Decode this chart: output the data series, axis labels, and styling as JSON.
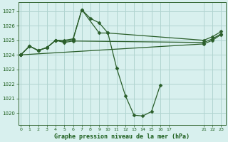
{
  "bg_color": "#d8f0ee",
  "grid_color": "#b0d4d0",
  "line_color": "#2a5e2a",
  "marker_color": "#2a5e2a",
  "title": "Graphe pression niveau de la mer (hPa)",
  "title_color": "#1a5c1a",
  "ylim": [
    1019.2,
    1027.6
  ],
  "yticks": [
    1020,
    1021,
    1022,
    1023,
    1024,
    1025,
    1026,
    1027
  ],
  "xlim": [
    -0.3,
    23.5
  ],
  "xticks": [
    0,
    1,
    2,
    3,
    4,
    5,
    6,
    7,
    8,
    9,
    10,
    11,
    12,
    13,
    14,
    15,
    16,
    17,
    21,
    22,
    23
  ],
  "line1_x": [
    0,
    1,
    2,
    3,
    4,
    5,
    6,
    7,
    8,
    9,
    10,
    11,
    12,
    13,
    14,
    15,
    16
  ],
  "line1_y": [
    1024.0,
    1024.6,
    1024.3,
    1024.5,
    1025.0,
    1025.0,
    1025.1,
    1027.1,
    1026.5,
    1026.2,
    1025.5,
    1023.1,
    1021.2,
    1019.85,
    1019.8,
    1020.1,
    1021.9
  ],
  "line2_x": [
    0,
    1,
    2,
    3,
    4,
    5,
    6,
    7,
    9,
    10,
    21,
    22,
    23
  ],
  "line2_y": [
    1024.0,
    1024.6,
    1024.3,
    1024.5,
    1025.0,
    1024.9,
    1025.05,
    1027.1,
    1025.5,
    1025.5,
    1025.0,
    1025.25,
    1025.6
  ],
  "line3_x": [
    0,
    1,
    2,
    3,
    4,
    5,
    6,
    21,
    22,
    23
  ],
  "line3_y": [
    1024.0,
    1024.6,
    1024.3,
    1024.5,
    1025.0,
    1024.85,
    1024.95,
    1024.85,
    1025.1,
    1025.45
  ],
  "line4_x": [
    0,
    21,
    22,
    23
  ],
  "line4_y": [
    1024.0,
    1024.75,
    1025.0,
    1025.4
  ],
  "lw": 0.9,
  "ms": 2.5
}
